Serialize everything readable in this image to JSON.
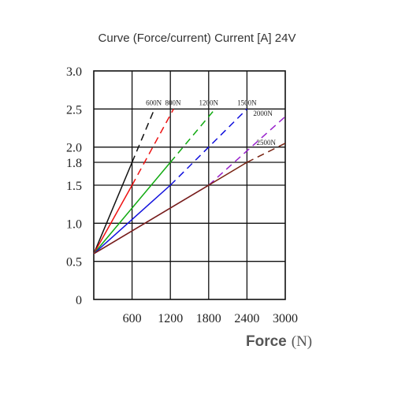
{
  "chart_data": {
    "type": "line",
    "title": "Curve (Force/current) Current [A] 24V",
    "xlabel": "Force",
    "xunit": "(N)",
    "ylabel": "",
    "xlim": [
      0,
      3000
    ],
    "ylim": [
      0,
      3.0
    ],
    "grid": true,
    "x_ticks": [
      "600",
      "1200",
      "1800",
      "2400",
      "3000"
    ],
    "y_ticks": [
      {
        "value": 3.0,
        "label": "3.0"
      },
      {
        "value": 2.5,
        "label": "2.5"
      },
      {
        "value": 2.0,
        "label": "2.0"
      },
      {
        "value": 1.8,
        "label": "1.8"
      },
      {
        "value": 1.5,
        "label": "1.5"
      },
      {
        "value": 1.0,
        "label": "1.0"
      },
      {
        "value": 0.5,
        "label": "0.5"
      },
      {
        "value": 0,
        "label": "0"
      }
    ],
    "series": [
      {
        "name": "600N",
        "color": "#111111",
        "solid": [
          [
            0,
            0.6
          ],
          [
            600,
            1.8
          ]
        ],
        "dashed": [
          [
            600,
            1.8
          ],
          [
            950,
            2.5
          ]
        ],
        "label_at": [
          940,
          2.55
        ]
      },
      {
        "name": "800N",
        "color": "#ee1111",
        "solid": [
          [
            0,
            0.6
          ],
          [
            600,
            1.5
          ]
        ],
        "dashed": [
          [
            600,
            1.5
          ],
          [
            1250,
            2.5
          ]
        ],
        "label_at": [
          1240,
          2.55
        ]
      },
      {
        "name": "1200N",
        "color": "#11aa11",
        "solid": [
          [
            0,
            0.6
          ],
          [
            1200,
            1.8
          ]
        ],
        "dashed": [
          [
            1200,
            1.8
          ],
          [
            1900,
            2.5
          ]
        ],
        "label_at": [
          1800,
          2.55
        ]
      },
      {
        "name": "1500N",
        "color": "#1111dd",
        "solid": [
          [
            0,
            0.6
          ],
          [
            1200,
            1.5
          ]
        ],
        "dashed": [
          [
            1200,
            1.5
          ],
          [
            2400,
            2.5
          ]
        ],
        "label_at": [
          2400,
          2.55
        ]
      },
      {
        "name": "2000N",
        "color": "#9922cc",
        "solid": [
          [
            0,
            0.6
          ],
          [
            1800,
            1.5
          ]
        ],
        "dashed": [
          [
            1800,
            1.5
          ],
          [
            3000,
            2.4
          ]
        ],
        "label_at": [
          2650,
          2.41
        ]
      },
      {
        "name": "2500N",
        "color": "#772211",
        "solid": [
          [
            0,
            0.6
          ],
          [
            2400,
            1.8
          ]
        ],
        "dashed": [
          [
            2400,
            1.8
          ],
          [
            3000,
            2.05
          ]
        ],
        "label_at": [
          2700,
          2.03
        ]
      }
    ]
  }
}
